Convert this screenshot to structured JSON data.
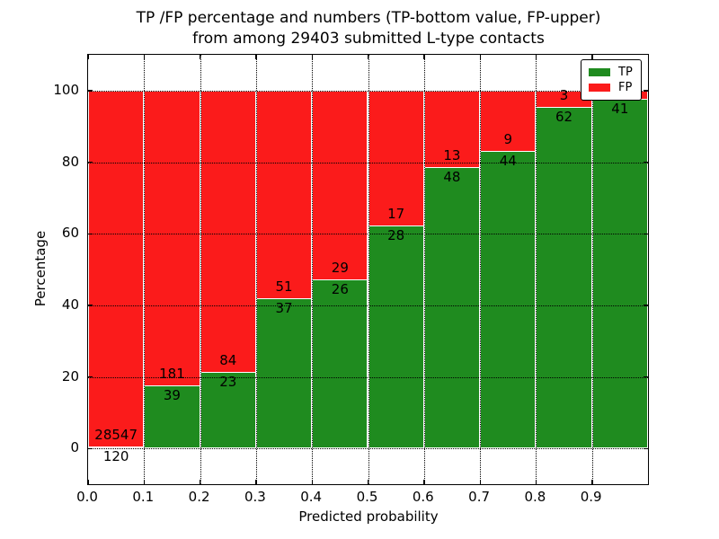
{
  "title": {
    "line1": "TP /FP percentage and numbers (TP-bottom value, FP-upper)",
    "line2": "from among 29403 submitted L-type contacts"
  },
  "axes": {
    "xlabel": "Predicted probability",
    "ylabel": "Percentage",
    "x_tick_labels": [
      "0.0",
      "0.1",
      "0.2",
      "0.3",
      "0.4",
      "0.5",
      "0.6",
      "0.7",
      "0.8",
      "0.9"
    ],
    "x_tick_values": [
      0.0,
      0.1,
      0.2,
      0.3,
      0.4,
      0.5,
      0.6,
      0.7,
      0.8,
      0.9
    ],
    "y_tick_labels": [
      "0",
      "20",
      "40",
      "60",
      "80",
      "100"
    ],
    "y_tick_values": [
      0,
      20,
      40,
      60,
      80,
      100
    ],
    "xlim": [
      0.0,
      1.0
    ],
    "ylim": [
      -10,
      110
    ],
    "grid_style": "dotted"
  },
  "legend": {
    "position": "upper-right",
    "entries": [
      {
        "label": "TP",
        "color": "#1f8b1f"
      },
      {
        "label": "FP",
        "color": "#fb1b1b"
      }
    ]
  },
  "colors": {
    "tp_green": "#1f8b1f",
    "fp_red": "#fb1b1b",
    "bar_edge": "#ffffff",
    "grid": "#000000",
    "background": "#ffffff",
    "text": "#000000"
  },
  "chart_data": {
    "type": "bar",
    "stacked": true,
    "normalized_to_percent": true,
    "title": "TP /FP percentage and numbers (TP-bottom value, FP-upper) from among 29403 submitted L-type contacts",
    "xlabel": "Predicted probability",
    "ylabel": "Percentage",
    "xlim": [
      0.0,
      1.0
    ],
    "ylim": [
      -10,
      110
    ],
    "bin_width": 0.1,
    "bin_edges": [
      0.0,
      0.1,
      0.2,
      0.3,
      0.4,
      0.5,
      0.6,
      0.7,
      0.8,
      0.9,
      1.0
    ],
    "total_contacts": 29403,
    "series": [
      {
        "name": "TP",
        "color": "#1f8b1f",
        "counts": [
          120,
          39,
          23,
          37,
          26,
          28,
          48,
          44,
          62,
          41
        ]
      },
      {
        "name": "FP",
        "color": "#fb1b1b",
        "counts": [
          28547,
          181,
          84,
          51,
          29,
          17,
          13,
          9,
          3,
          1
        ]
      }
    ],
    "bars": [
      {
        "x0": 0.0,
        "x1": 0.1,
        "tp_count": 120,
        "fp_count": 28547,
        "tp_percent": 0.42,
        "fp_percent": 99.58,
        "tp_label": "120",
        "fp_label": "28547"
      },
      {
        "x0": 0.1,
        "x1": 0.2,
        "tp_count": 39,
        "fp_count": 181,
        "tp_percent": 17.73,
        "fp_percent": 82.27,
        "tp_label": "39",
        "fp_label": "181"
      },
      {
        "x0": 0.2,
        "x1": 0.3,
        "tp_count": 23,
        "fp_count": 84,
        "tp_percent": 21.5,
        "fp_percent": 78.5,
        "tp_label": "23",
        "fp_label": "84"
      },
      {
        "x0": 0.3,
        "x1": 0.4,
        "tp_count": 37,
        "fp_count": 51,
        "tp_percent": 42.05,
        "fp_percent": 57.95,
        "tp_label": "37",
        "fp_label": "51"
      },
      {
        "x0": 0.4,
        "x1": 0.5,
        "tp_count": 26,
        "fp_count": 29,
        "tp_percent": 47.27,
        "fp_percent": 52.73,
        "tp_label": "26",
        "fp_label": "29"
      },
      {
        "x0": 0.5,
        "x1": 0.6,
        "tp_count": 28,
        "fp_count": 17,
        "tp_percent": 62.22,
        "fp_percent": 37.78,
        "tp_label": "28",
        "fp_label": "17"
      },
      {
        "x0": 0.6,
        "x1": 0.7,
        "tp_count": 48,
        "fp_count": 13,
        "tp_percent": 78.69,
        "fp_percent": 21.31,
        "tp_label": "48",
        "fp_label": "13"
      },
      {
        "x0": 0.7,
        "x1": 0.8,
        "tp_count": 44,
        "fp_count": 9,
        "tp_percent": 83.02,
        "fp_percent": 16.98,
        "tp_label": "44",
        "fp_label": "9"
      },
      {
        "x0": 0.8,
        "x1": 0.9,
        "tp_count": 62,
        "fp_count": 3,
        "tp_percent": 95.38,
        "fp_percent": 4.62,
        "tp_label": "62",
        "fp_label": "3"
      },
      {
        "x0": 0.9,
        "x1": 1.0,
        "tp_count": 41,
        "fp_count": 1,
        "tp_percent": 97.62,
        "fp_percent": 2.38,
        "tp_label": "41",
        "fp_label": ""
      }
    ],
    "legend_entries": [
      "TP",
      "FP"
    ],
    "grid": true,
    "legend_position": "upper right"
  }
}
